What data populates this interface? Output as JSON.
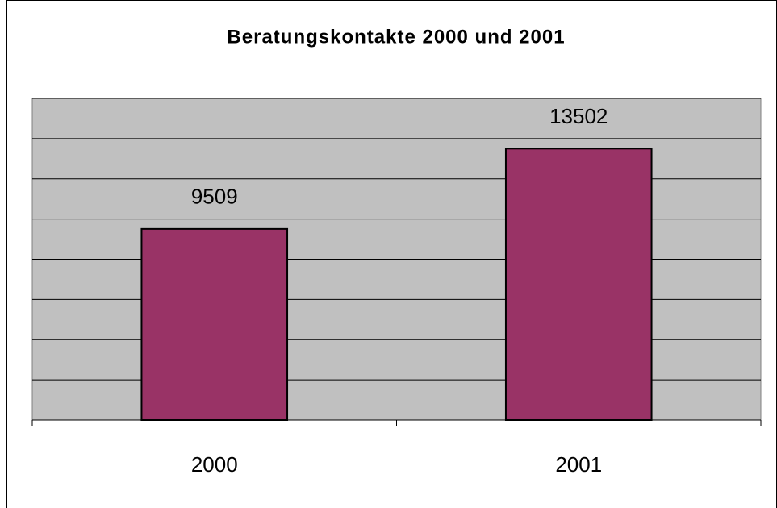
{
  "chart_data": {
    "type": "bar",
    "title": "Beratungskontakte 2000 und 2001",
    "categories": [
      "2000",
      "2001"
    ],
    "values": [
      9509,
      13502
    ],
    "color": "#993366",
    "ylim": [
      0,
      16000
    ],
    "yticks": [
      0,
      2000,
      4000,
      6000,
      8000,
      10000,
      12000,
      14000,
      16000
    ],
    "grid": true
  }
}
